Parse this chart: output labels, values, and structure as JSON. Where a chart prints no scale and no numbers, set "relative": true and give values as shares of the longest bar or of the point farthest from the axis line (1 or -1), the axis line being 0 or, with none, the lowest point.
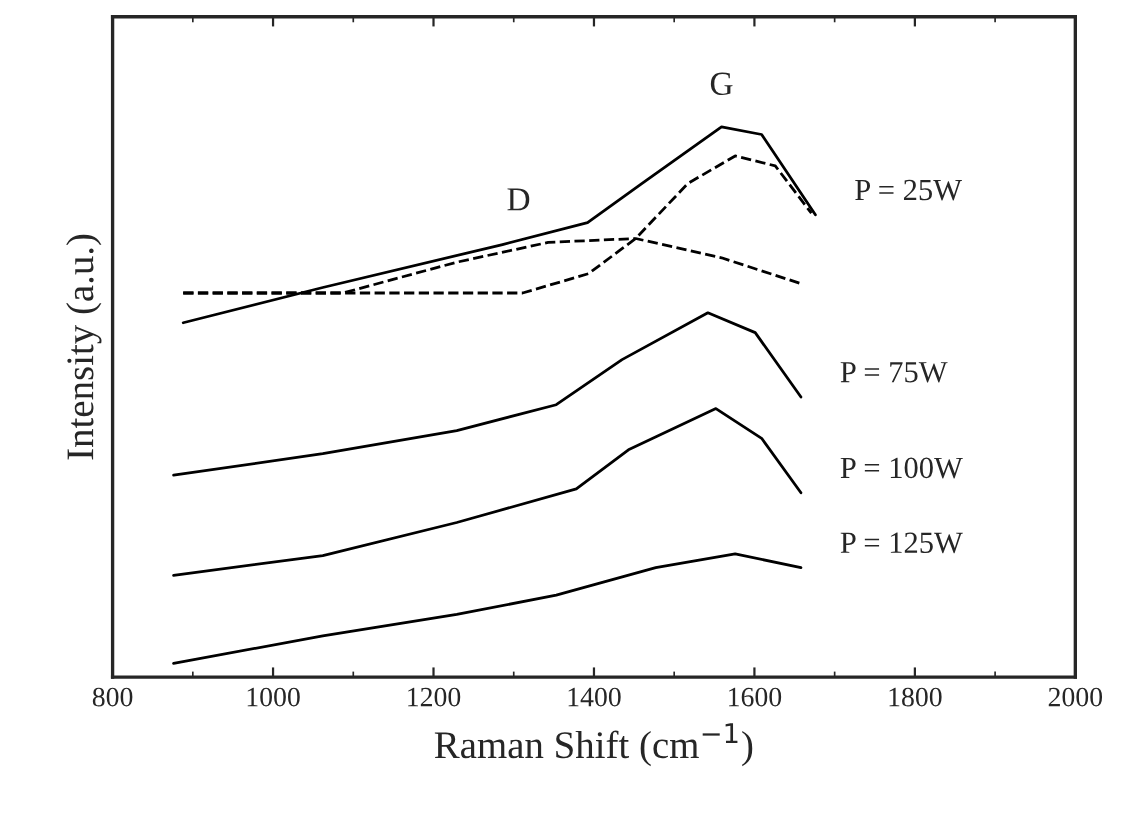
{
  "chart_data": {
    "type": "line",
    "relative": true,
    "xlabel": "Raman Shift (cm$^{−1}$)",
    "ylabel": "Intensity (a.u.)",
    "xlim": [
      800,
      2000
    ],
    "xticks": [
      800,
      1000,
      1200,
      1400,
      1600,
      1800,
      2000
    ],
    "tick_labels": "x",
    "grid": false,
    "series": [
      {
        "name": "P = 25W",
        "color": "#000000",
        "line_style": "solid",
        "x": [
          888,
          1062,
          1286,
          1392,
          1460,
          1559,
          1609,
          1676
        ],
        "values": [
          0.644,
          0.708,
          0.786,
          0.826,
          0.897,
          1.0,
          0.986,
          0.84
        ]
      },
      {
        "color": "#000000",
        "line_style": "dashed",
        "x": [
          888,
          1311,
          1393,
          1452,
          1517,
          1576,
          1626,
          1671
        ],
        "values": [
          0.698,
          0.698,
          0.733,
          0.797,
          0.897,
          0.947,
          0.929,
          0.843
        ]
      },
      {
        "color": "#000000",
        "line_style": "dashed",
        "x": [
          888,
          1087,
          1229,
          1343,
          1452,
          1559,
          1658
        ],
        "values": [
          0.698,
          0.698,
          0.754,
          0.79,
          0.797,
          0.762,
          0.715
        ]
      },
      {
        "name": "P = 75W",
        "color": "#000000",
        "line_style": "solid",
        "x": [
          876,
          1062,
          1229,
          1353,
          1435,
          1542,
          1601,
          1658
        ],
        "values": [
          0.367,
          0.406,
          0.448,
          0.495,
          0.577,
          0.662,
          0.626,
          0.509
        ]
      },
      {
        "name": "P = 100W",
        "color": "#000000",
        "line_style": "solid",
        "x": [
          876,
          1062,
          1229,
          1378,
          1443,
          1552,
          1609,
          1658
        ],
        "values": [
          0.185,
          0.221,
          0.281,
          0.342,
          0.413,
          0.488,
          0.434,
          0.335
        ]
      },
      {
        "name": "P = 125W",
        "color": "#000000",
        "line_style": "solid",
        "x": [
          876,
          1062,
          1229,
          1353,
          1477,
          1576,
          1658
        ],
        "values": [
          0.025,
          0.075,
          0.114,
          0.149,
          0.199,
          0.224,
          0.199
        ]
      }
    ],
    "annotations": [
      {
        "text": "D",
        "x": 1306,
        "y": 0.79
      },
      {
        "text": "G",
        "x": 1559,
        "y": 1.0
      }
    ]
  }
}
